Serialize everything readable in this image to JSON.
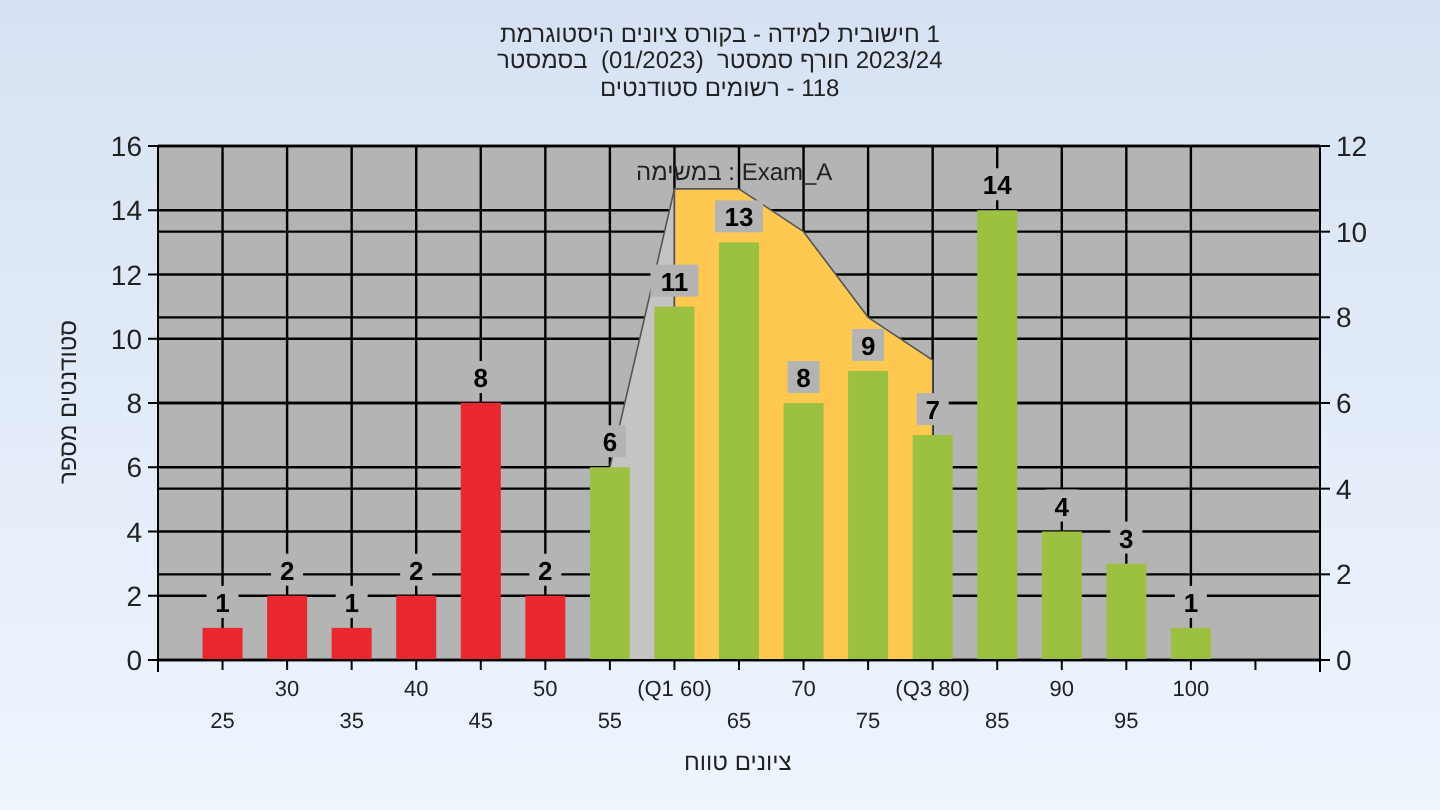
{
  "chart_data": {
    "type": "bar",
    "title": "היסטוגרמת ציונים בקורס - למידה חישובית 1",
    "subtitle": "בסמסטר  (01/2023)  סמסטר חורף 2023/24\nסטודנטים רשומים - 118",
    "xlabel": "טווח ציונים",
    "ylabel": "מספר סטודנטים",
    "annotations": [
      "במשימה : Exam_A"
    ],
    "categories": [
      "25",
      "30",
      "35",
      "40",
      "45",
      "50",
      "55",
      "(Q1 60)",
      "65",
      "70",
      "75",
      "(Q3 80)",
      "85",
      "90",
      "95",
      "100"
    ],
    "series": [
      {
        "type": "area",
        "axis": "y2",
        "color": "#c4c4c4",
        "values": [
          null,
          null,
          null,
          null,
          null,
          null,
          4.5,
          11,
          null,
          null,
          null,
          null,
          null,
          null,
          null,
          null
        ]
      },
      {
        "type": "area",
        "axis": "y2",
        "color": "#ffc850",
        "values": [
          null,
          null,
          null,
          null,
          null,
          null,
          null,
          11,
          11,
          10,
          8,
          7,
          null,
          null,
          null,
          null
        ]
      },
      {
        "colors": [
          "#e8282e",
          "#e8282e",
          "#e8282e",
          "#e8282e",
          "#e8282e",
          "#e8282e",
          "#9cc040",
          "#9cc040",
          "#9cc040",
          "#9cc040",
          "#9cc040",
          "#9cc040",
          "#9cc040",
          "#9cc040",
          "#9cc040",
          "#9cc040"
        ],
        "values": [
          1,
          2,
          1,
          2,
          8,
          2,
          6,
          11,
          13,
          8,
          9,
          7,
          14,
          4,
          3,
          1
        ],
        "value_labels": [
          "1",
          "2",
          "1",
          "2",
          "8",
          "2",
          "6",
          "11",
          "13",
          "8",
          "9",
          "7",
          "14",
          "4",
          "3",
          "1"
        ]
      }
    ],
    "ylim": [
      0,
      16
    ],
    "yticks": [
      0,
      2,
      4,
      6,
      8,
      10,
      12,
      14,
      16
    ],
    "y2lim": [
      0,
      12
    ],
    "y2ticks": [
      0,
      2,
      4,
      6,
      8,
      10,
      12
    ],
    "grid": true
  }
}
